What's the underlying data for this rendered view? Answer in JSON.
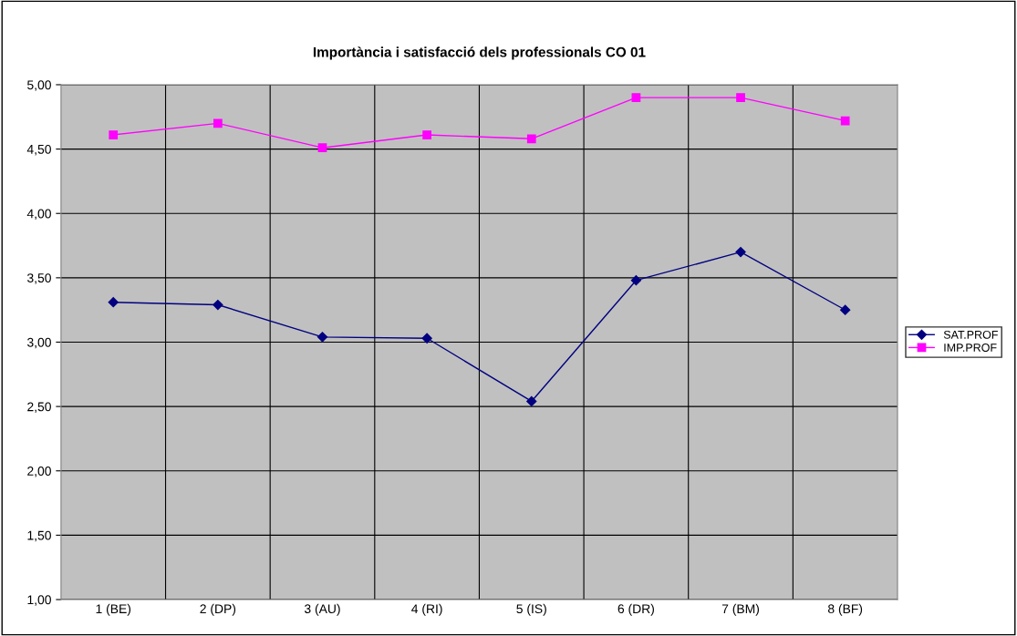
{
  "chart_data": {
    "type": "line",
    "title": "Importància i satisfacció dels professionals CO 01",
    "categories": [
      "1 (BE)",
      "2 (DP)",
      "3 (AU)",
      "4 (RI)",
      "5 (IS)",
      "6 (DR)",
      "7 (BM)",
      "8 (BF)"
    ],
    "series": [
      {
        "name": "SAT.PROF",
        "color": "#000080",
        "marker": "diamond",
        "values": [
          3.31,
          3.29,
          3.04,
          3.03,
          2.54,
          3.48,
          3.7,
          3.25
        ]
      },
      {
        "name": "IMP.PROF",
        "color": "#ff00ff",
        "marker": "square",
        "values": [
          4.61,
          4.7,
          4.51,
          4.61,
          4.58,
          4.9,
          4.9,
          4.72
        ]
      }
    ],
    "ylim": [
      1,
      5
    ],
    "yticks": [
      {
        "value": 1,
        "label": "1,00"
      },
      {
        "value": 1.5,
        "label": "1,50"
      },
      {
        "value": 2,
        "label": "2,00"
      },
      {
        "value": 2.5,
        "label": "2,50"
      },
      {
        "value": 3,
        "label": "3,00"
      },
      {
        "value": 3.5,
        "label": "3,50"
      },
      {
        "value": 4,
        "label": "4,00"
      },
      {
        "value": 4.5,
        "label": "4,50"
      },
      {
        "value": 5,
        "label": "5,00"
      }
    ],
    "grid": true,
    "legend": "right",
    "line_style": "solid"
  }
}
